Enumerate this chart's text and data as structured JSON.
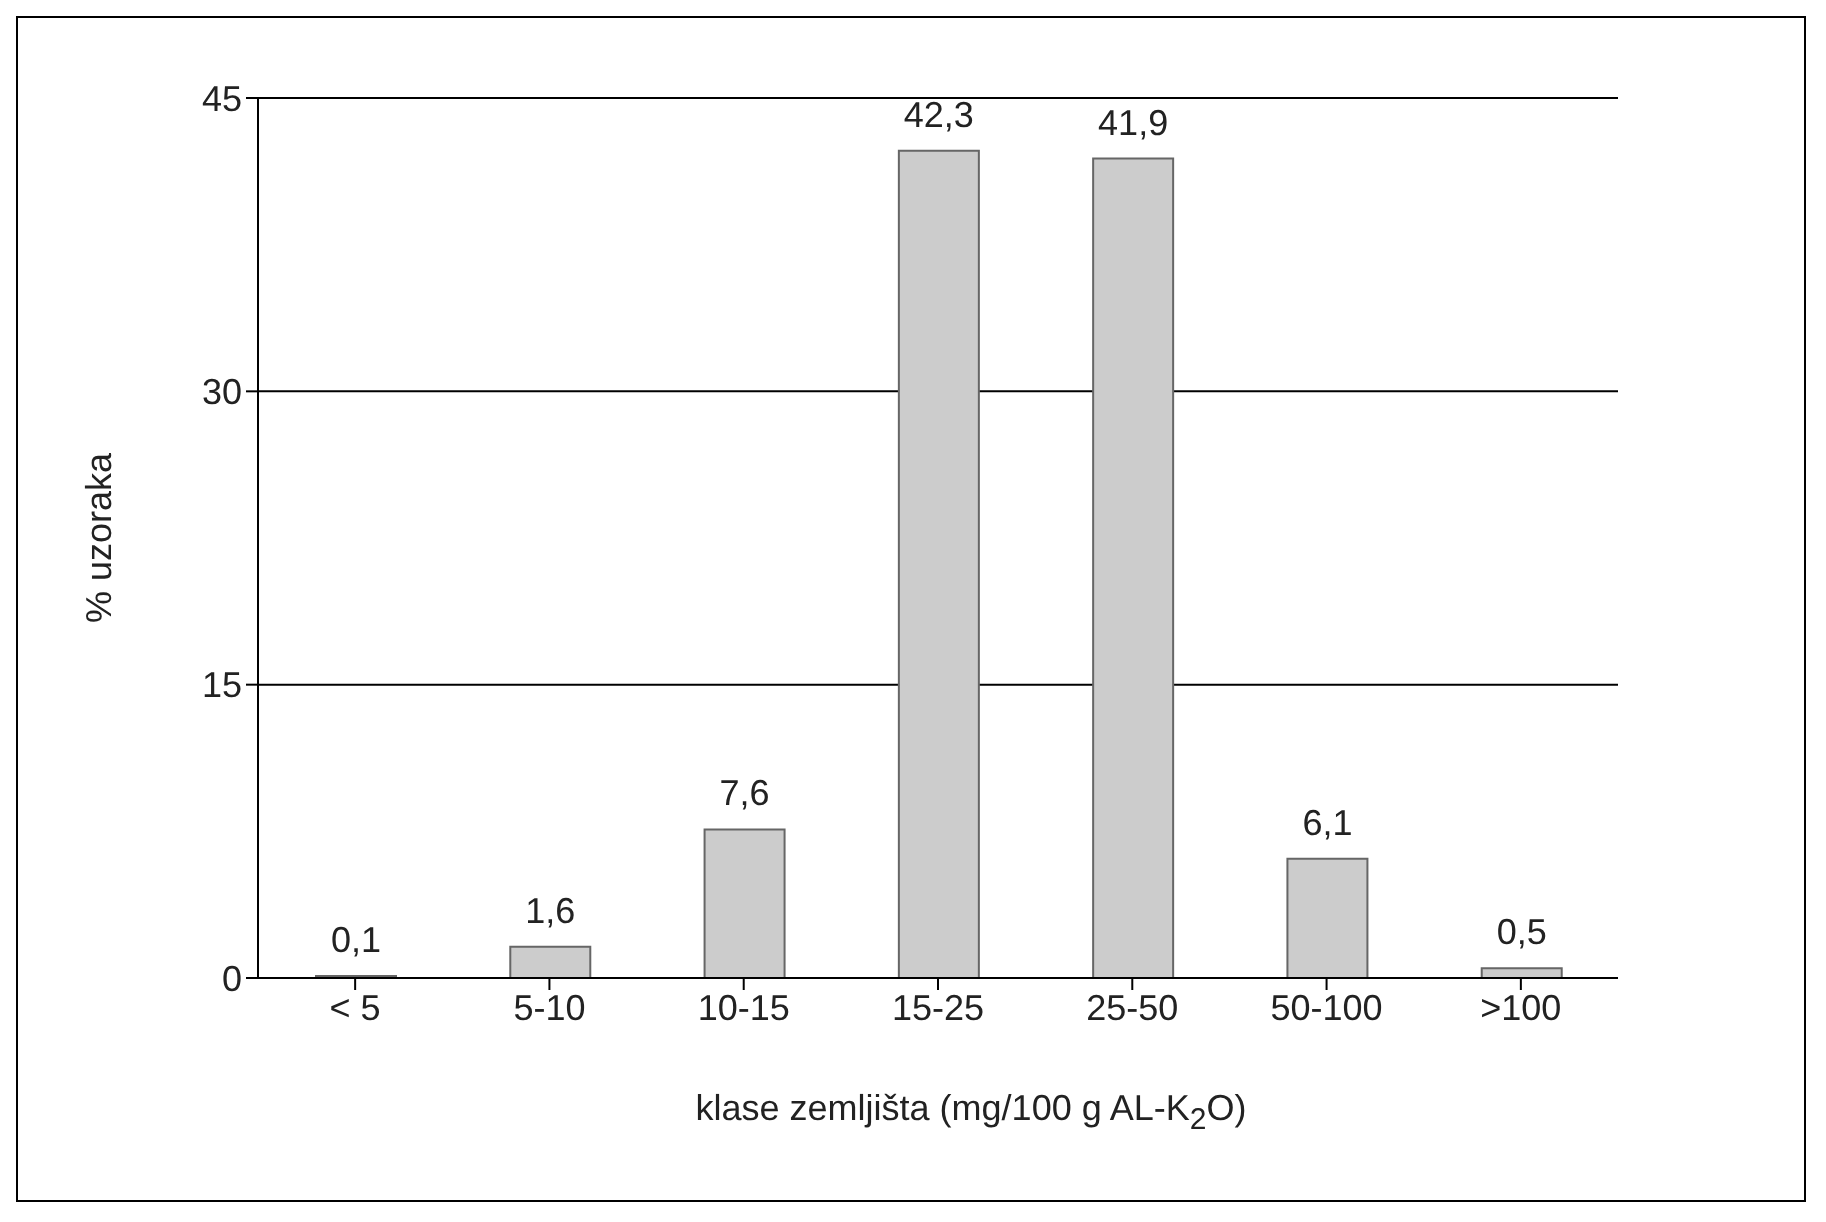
{
  "chart_data": {
    "type": "bar",
    "xlabel": "klase zemljišta (mg/100 g AL-K$_{2}$O)",
    "ylabel": "% uzoraka",
    "categories": [
      "< 5",
      "5-10",
      "10-15",
      "15-25",
      "25-50",
      "50-100",
      ">100"
    ],
    "values": [
      0.1,
      1.6,
      7.6,
      42.3,
      41.9,
      6.1,
      0.5
    ],
    "value_labels": [
      "0,1",
      "1,6",
      "7,6",
      "42,3",
      "41,9",
      "6,1",
      "0,5"
    ],
    "color": "#cccccc",
    "ylim": [
      0,
      45
    ],
    "yticks": [
      0,
      15,
      30,
      45
    ],
    "grid": "y"
  }
}
